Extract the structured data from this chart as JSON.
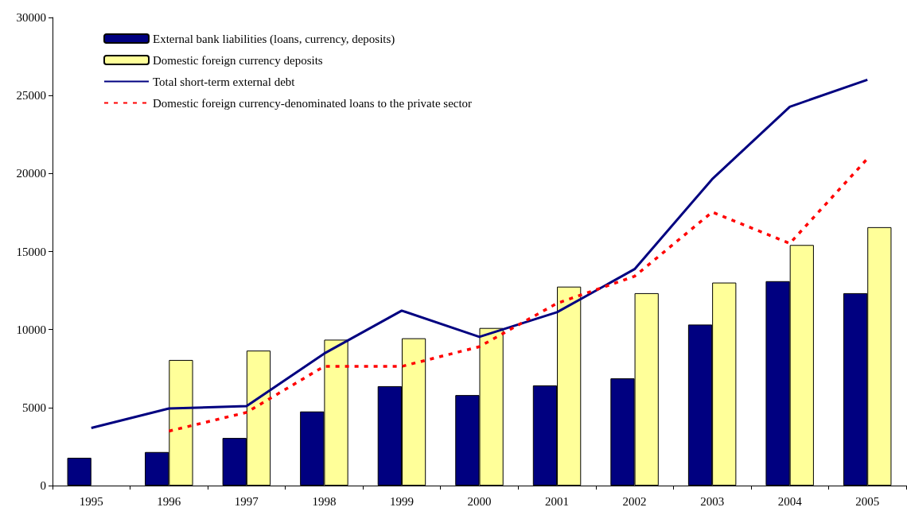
{
  "chart_data": {
    "type": "bar",
    "categories": [
      "1995",
      "1996",
      "1997",
      "1998",
      "1999",
      "2000",
      "2001",
      "2002",
      "2003",
      "2004",
      "2005"
    ],
    "series": [
      {
        "name": "External bank liabilities (loans, currency, deposits)",
        "color": "#000080",
        "values": [
          1780,
          2150,
          3050,
          4750,
          6370,
          5800,
          6420,
          6870,
          10320,
          13100,
          12330
        ]
      },
      {
        "name": "Domestic foreign currency deposits",
        "color": "#ffff99",
        "values": [
          null,
          8050,
          8650,
          9350,
          9440,
          10100,
          12750,
          12330,
          13010,
          15420,
          16560
        ]
      },
      {
        "name": "Total short-term external debt",
        "type": "line",
        "color": "#000080",
        "line_style": "solid",
        "values": [
          3690,
          4940,
          5090,
          8460,
          11210,
          9530,
          11110,
          13870,
          19640,
          24280,
          26010
        ]
      },
      {
        "name": "Domestic foreign currency-denominated loans to the private sector",
        "type": "line",
        "color": "#ff0000",
        "line_style": "dashed",
        "values": [
          null,
          3490,
          4690,
          7640,
          7640,
          8900,
          11680,
          13410,
          17530,
          15520,
          20950
        ]
      }
    ],
    "ylim": [
      0,
      30000
    ],
    "yticks": [
      0,
      5000,
      10000,
      15000,
      20000,
      25000,
      30000
    ],
    "legend": "top left",
    "marker": "none"
  }
}
